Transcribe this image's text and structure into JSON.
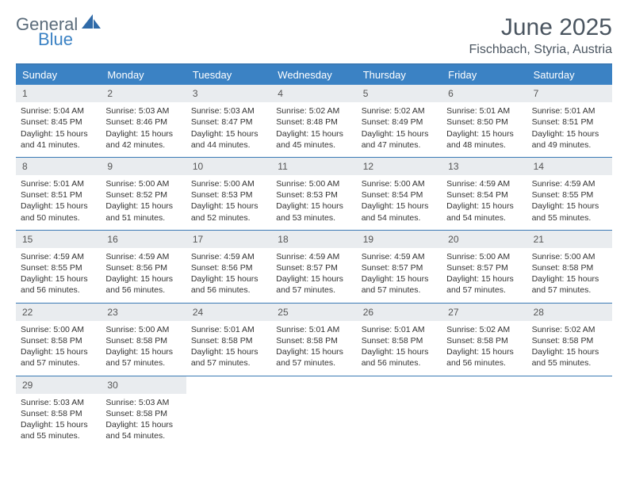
{
  "brand": {
    "line1": "General",
    "line2": "Blue"
  },
  "title": {
    "month_year": "June 2025",
    "location": "Fischbach, Styria, Austria"
  },
  "colors": {
    "header_bar": "#3b82c4",
    "rule": "#3b7ab5",
    "daynum_bg": "#e9ecef",
    "text": "#333333",
    "brand_gray": "#5a6b7a",
    "brand_blue": "#3b82c4",
    "background": "#ffffff"
  },
  "day_labels": [
    "Sunday",
    "Monday",
    "Tuesday",
    "Wednesday",
    "Thursday",
    "Friday",
    "Saturday"
  ],
  "days": [
    {
      "n": "1",
      "sunrise": "Sunrise: 5:04 AM",
      "sunset": "Sunset: 8:45 PM",
      "day1": "Daylight: 15 hours",
      "day2": "and 41 minutes."
    },
    {
      "n": "2",
      "sunrise": "Sunrise: 5:03 AM",
      "sunset": "Sunset: 8:46 PM",
      "day1": "Daylight: 15 hours",
      "day2": "and 42 minutes."
    },
    {
      "n": "3",
      "sunrise": "Sunrise: 5:03 AM",
      "sunset": "Sunset: 8:47 PM",
      "day1": "Daylight: 15 hours",
      "day2": "and 44 minutes."
    },
    {
      "n": "4",
      "sunrise": "Sunrise: 5:02 AM",
      "sunset": "Sunset: 8:48 PM",
      "day1": "Daylight: 15 hours",
      "day2": "and 45 minutes."
    },
    {
      "n": "5",
      "sunrise": "Sunrise: 5:02 AM",
      "sunset": "Sunset: 8:49 PM",
      "day1": "Daylight: 15 hours",
      "day2": "and 47 minutes."
    },
    {
      "n": "6",
      "sunrise": "Sunrise: 5:01 AM",
      "sunset": "Sunset: 8:50 PM",
      "day1": "Daylight: 15 hours",
      "day2": "and 48 minutes."
    },
    {
      "n": "7",
      "sunrise": "Sunrise: 5:01 AM",
      "sunset": "Sunset: 8:51 PM",
      "day1": "Daylight: 15 hours",
      "day2": "and 49 minutes."
    },
    {
      "n": "8",
      "sunrise": "Sunrise: 5:01 AM",
      "sunset": "Sunset: 8:51 PM",
      "day1": "Daylight: 15 hours",
      "day2": "and 50 minutes."
    },
    {
      "n": "9",
      "sunrise": "Sunrise: 5:00 AM",
      "sunset": "Sunset: 8:52 PM",
      "day1": "Daylight: 15 hours",
      "day2": "and 51 minutes."
    },
    {
      "n": "10",
      "sunrise": "Sunrise: 5:00 AM",
      "sunset": "Sunset: 8:53 PM",
      "day1": "Daylight: 15 hours",
      "day2": "and 52 minutes."
    },
    {
      "n": "11",
      "sunrise": "Sunrise: 5:00 AM",
      "sunset": "Sunset: 8:53 PM",
      "day1": "Daylight: 15 hours",
      "day2": "and 53 minutes."
    },
    {
      "n": "12",
      "sunrise": "Sunrise: 5:00 AM",
      "sunset": "Sunset: 8:54 PM",
      "day1": "Daylight: 15 hours",
      "day2": "and 54 minutes."
    },
    {
      "n": "13",
      "sunrise": "Sunrise: 4:59 AM",
      "sunset": "Sunset: 8:54 PM",
      "day1": "Daylight: 15 hours",
      "day2": "and 54 minutes."
    },
    {
      "n": "14",
      "sunrise": "Sunrise: 4:59 AM",
      "sunset": "Sunset: 8:55 PM",
      "day1": "Daylight: 15 hours",
      "day2": "and 55 minutes."
    },
    {
      "n": "15",
      "sunrise": "Sunrise: 4:59 AM",
      "sunset": "Sunset: 8:55 PM",
      "day1": "Daylight: 15 hours",
      "day2": "and 56 minutes."
    },
    {
      "n": "16",
      "sunrise": "Sunrise: 4:59 AM",
      "sunset": "Sunset: 8:56 PM",
      "day1": "Daylight: 15 hours",
      "day2": "and 56 minutes."
    },
    {
      "n": "17",
      "sunrise": "Sunrise: 4:59 AM",
      "sunset": "Sunset: 8:56 PM",
      "day1": "Daylight: 15 hours",
      "day2": "and 56 minutes."
    },
    {
      "n": "18",
      "sunrise": "Sunrise: 4:59 AM",
      "sunset": "Sunset: 8:57 PM",
      "day1": "Daylight: 15 hours",
      "day2": "and 57 minutes."
    },
    {
      "n": "19",
      "sunrise": "Sunrise: 4:59 AM",
      "sunset": "Sunset: 8:57 PM",
      "day1": "Daylight: 15 hours",
      "day2": "and 57 minutes."
    },
    {
      "n": "20",
      "sunrise": "Sunrise: 5:00 AM",
      "sunset": "Sunset: 8:57 PM",
      "day1": "Daylight: 15 hours",
      "day2": "and 57 minutes."
    },
    {
      "n": "21",
      "sunrise": "Sunrise: 5:00 AM",
      "sunset": "Sunset: 8:58 PM",
      "day1": "Daylight: 15 hours",
      "day2": "and 57 minutes."
    },
    {
      "n": "22",
      "sunrise": "Sunrise: 5:00 AM",
      "sunset": "Sunset: 8:58 PM",
      "day1": "Daylight: 15 hours",
      "day2": "and 57 minutes."
    },
    {
      "n": "23",
      "sunrise": "Sunrise: 5:00 AM",
      "sunset": "Sunset: 8:58 PM",
      "day1": "Daylight: 15 hours",
      "day2": "and 57 minutes."
    },
    {
      "n": "24",
      "sunrise": "Sunrise: 5:01 AM",
      "sunset": "Sunset: 8:58 PM",
      "day1": "Daylight: 15 hours",
      "day2": "and 57 minutes."
    },
    {
      "n": "25",
      "sunrise": "Sunrise: 5:01 AM",
      "sunset": "Sunset: 8:58 PM",
      "day1": "Daylight: 15 hours",
      "day2": "and 57 minutes."
    },
    {
      "n": "26",
      "sunrise": "Sunrise: 5:01 AM",
      "sunset": "Sunset: 8:58 PM",
      "day1": "Daylight: 15 hours",
      "day2": "and 56 minutes."
    },
    {
      "n": "27",
      "sunrise": "Sunrise: 5:02 AM",
      "sunset": "Sunset: 8:58 PM",
      "day1": "Daylight: 15 hours",
      "day2": "and 56 minutes."
    },
    {
      "n": "28",
      "sunrise": "Sunrise: 5:02 AM",
      "sunset": "Sunset: 8:58 PM",
      "day1": "Daylight: 15 hours",
      "day2": "and 55 minutes."
    },
    {
      "n": "29",
      "sunrise": "Sunrise: 5:03 AM",
      "sunset": "Sunset: 8:58 PM",
      "day1": "Daylight: 15 hours",
      "day2": "and 55 minutes."
    },
    {
      "n": "30",
      "sunrise": "Sunrise: 5:03 AM",
      "sunset": "Sunset: 8:58 PM",
      "day1": "Daylight: 15 hours",
      "day2": "and 54 minutes."
    }
  ]
}
